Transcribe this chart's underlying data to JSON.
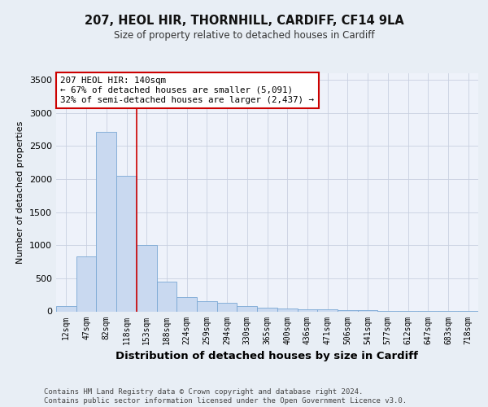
{
  "title1": "207, HEOL HIR, THORNHILL, CARDIFF, CF14 9LA",
  "title2": "Size of property relative to detached houses in Cardiff",
  "xlabel": "Distribution of detached houses by size in Cardiff",
  "ylabel": "Number of detached properties",
  "categories": [
    "12sqm",
    "47sqm",
    "82sqm",
    "118sqm",
    "153sqm",
    "188sqm",
    "224sqm",
    "259sqm",
    "294sqm",
    "330sqm",
    "365sqm",
    "400sqm",
    "436sqm",
    "471sqm",
    "506sqm",
    "541sqm",
    "577sqm",
    "612sqm",
    "647sqm",
    "683sqm",
    "718sqm"
  ],
  "values": [
    75,
    830,
    2720,
    2050,
    1000,
    450,
    215,
    155,
    130,
    80,
    55,
    40,
    30,
    25,
    20,
    15,
    10,
    8,
    5,
    5,
    5
  ],
  "bar_color": "#c9d9f0",
  "bar_edge_color": "#7aa8d4",
  "vline_color": "#cc0000",
  "annotation_text": "207 HEOL HIR: 140sqm\n← 67% of detached houses are smaller (5,091)\n32% of semi-detached houses are larger (2,437) →",
  "annotation_box_color": "#ffffff",
  "annotation_box_edge": "#cc0000",
  "ylim": [
    0,
    3600
  ],
  "yticks": [
    0,
    500,
    1000,
    1500,
    2000,
    2500,
    3000,
    3500
  ],
  "footer": "Contains HM Land Registry data © Crown copyright and database right 2024.\nContains public sector information licensed under the Open Government Licence v3.0.",
  "bg_color": "#e8eef5",
  "plot_bg_color": "#eef2fa",
  "grid_color": "#c8d0e0"
}
